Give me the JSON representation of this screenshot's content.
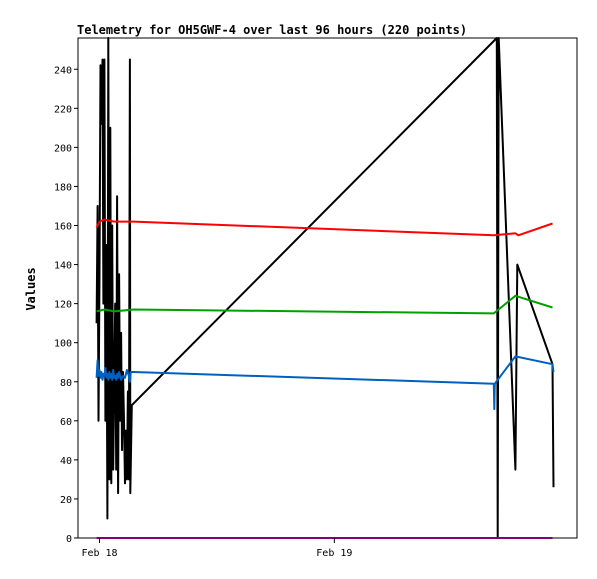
{
  "chart_data": {
    "type": "line",
    "title": "Telemetry for OH5GWF-4 over last 96 hours (220 points)",
    "ylabel": "Values",
    "xlabel": "",
    "ylim": [
      0,
      256
    ],
    "xlim_hours": [
      -2.2,
      48.8
    ],
    "x_unit": "hours after Feb 18 00:00",
    "yticks": [
      0,
      20,
      40,
      60,
      80,
      100,
      120,
      140,
      160,
      180,
      200,
      220,
      240
    ],
    "xticks": [
      {
        "label": "Feb 18",
        "x": 0
      },
      {
        "label": "Feb 19",
        "x": 24
      }
    ],
    "grid": false,
    "legend": "none",
    "series": [
      {
        "color": "#000000",
        "points": [
          [
            -0.3,
            110
          ],
          [
            -0.2,
            170
          ],
          [
            -0.1,
            60
          ],
          [
            0.0,
            135
          ],
          [
            0.1,
            242
          ],
          [
            0.2,
            212
          ],
          [
            0.3,
            245
          ],
          [
            0.4,
            120
          ],
          [
            0.5,
            245
          ],
          [
            0.6,
            60
          ],
          [
            0.7,
            150
          ],
          [
            0.8,
            10
          ],
          [
            0.9,
            256
          ],
          [
            1.0,
            30
          ],
          [
            1.1,
            210
          ],
          [
            1.2,
            28
          ],
          [
            1.3,
            160
          ],
          [
            1.4,
            35
          ],
          [
            1.5,
            80
          ],
          [
            1.6,
            120
          ],
          [
            1.7,
            35
          ],
          [
            1.8,
            175
          ],
          [
            1.9,
            23
          ],
          [
            2.0,
            135
          ],
          [
            2.1,
            60
          ],
          [
            2.2,
            105
          ],
          [
            2.3,
            45
          ],
          [
            2.4,
            85
          ],
          [
            2.5,
            60
          ],
          [
            2.6,
            28
          ],
          [
            2.7,
            55
          ],
          [
            2.8,
            30
          ],
          [
            2.9,
            75
          ],
          [
            3.0,
            30
          ],
          [
            3.1,
            245
          ],
          [
            3.15,
            23
          ],
          [
            3.3,
            68
          ],
          [
            40.6,
            256
          ],
          [
            40.7,
            0
          ],
          [
            40.8,
            256
          ],
          [
            42.5,
            35
          ],
          [
            42.7,
            140
          ],
          [
            46.3,
            89
          ],
          [
            46.4,
            26
          ]
        ]
      },
      {
        "color": "#ff0000",
        "points": [
          [
            -0.3,
            159
          ],
          [
            0.0,
            162
          ],
          [
            0.5,
            163
          ],
          [
            1.5,
            162
          ],
          [
            3.5,
            162
          ],
          [
            40.3,
            155
          ],
          [
            42.5,
            156
          ],
          [
            42.8,
            155
          ],
          [
            46.3,
            161
          ]
        ]
      },
      {
        "color": "#00a000",
        "points": [
          [
            -0.3,
            116
          ],
          [
            0.5,
            117
          ],
          [
            1.5,
            116
          ],
          [
            3.5,
            117
          ],
          [
            40.3,
            115
          ],
          [
            42.5,
            124
          ],
          [
            46.3,
            118
          ]
        ]
      },
      {
        "color": "#0060c0",
        "points": [
          [
            -0.3,
            82
          ],
          [
            -0.2,
            91
          ],
          [
            -0.1,
            83
          ],
          [
            0.0,
            86
          ],
          [
            0.1,
            82
          ],
          [
            0.2,
            85
          ],
          [
            0.3,
            81
          ],
          [
            0.4,
            84
          ],
          [
            0.5,
            83
          ],
          [
            0.6,
            87
          ],
          [
            0.7,
            82
          ],
          [
            0.8,
            84
          ],
          [
            0.9,
            81
          ],
          [
            1.0,
            85
          ],
          [
            1.1,
            82
          ],
          [
            1.2,
            84
          ],
          [
            1.3,
            81
          ],
          [
            1.4,
            86
          ],
          [
            1.5,
            82
          ],
          [
            1.6,
            83
          ],
          [
            1.7,
            81
          ],
          [
            1.8,
            84
          ],
          [
            1.9,
            82
          ],
          [
            2.0,
            85
          ],
          [
            2.2,
            81
          ],
          [
            2.4,
            83
          ],
          [
            2.6,
            82
          ],
          [
            2.8,
            86
          ],
          [
            3.0,
            83
          ],
          [
            3.1,
            80
          ],
          [
            3.2,
            85
          ],
          [
            3.5,
            85
          ],
          [
            40.3,
            79
          ],
          [
            40.35,
            66
          ],
          [
            40.4,
            79
          ],
          [
            42.5,
            93
          ],
          [
            46.3,
            89
          ],
          [
            46.4,
            85
          ]
        ]
      },
      {
        "color": "#800080",
        "points": [
          [
            -0.3,
            0
          ],
          [
            46.3,
            0
          ]
        ]
      }
    ]
  }
}
